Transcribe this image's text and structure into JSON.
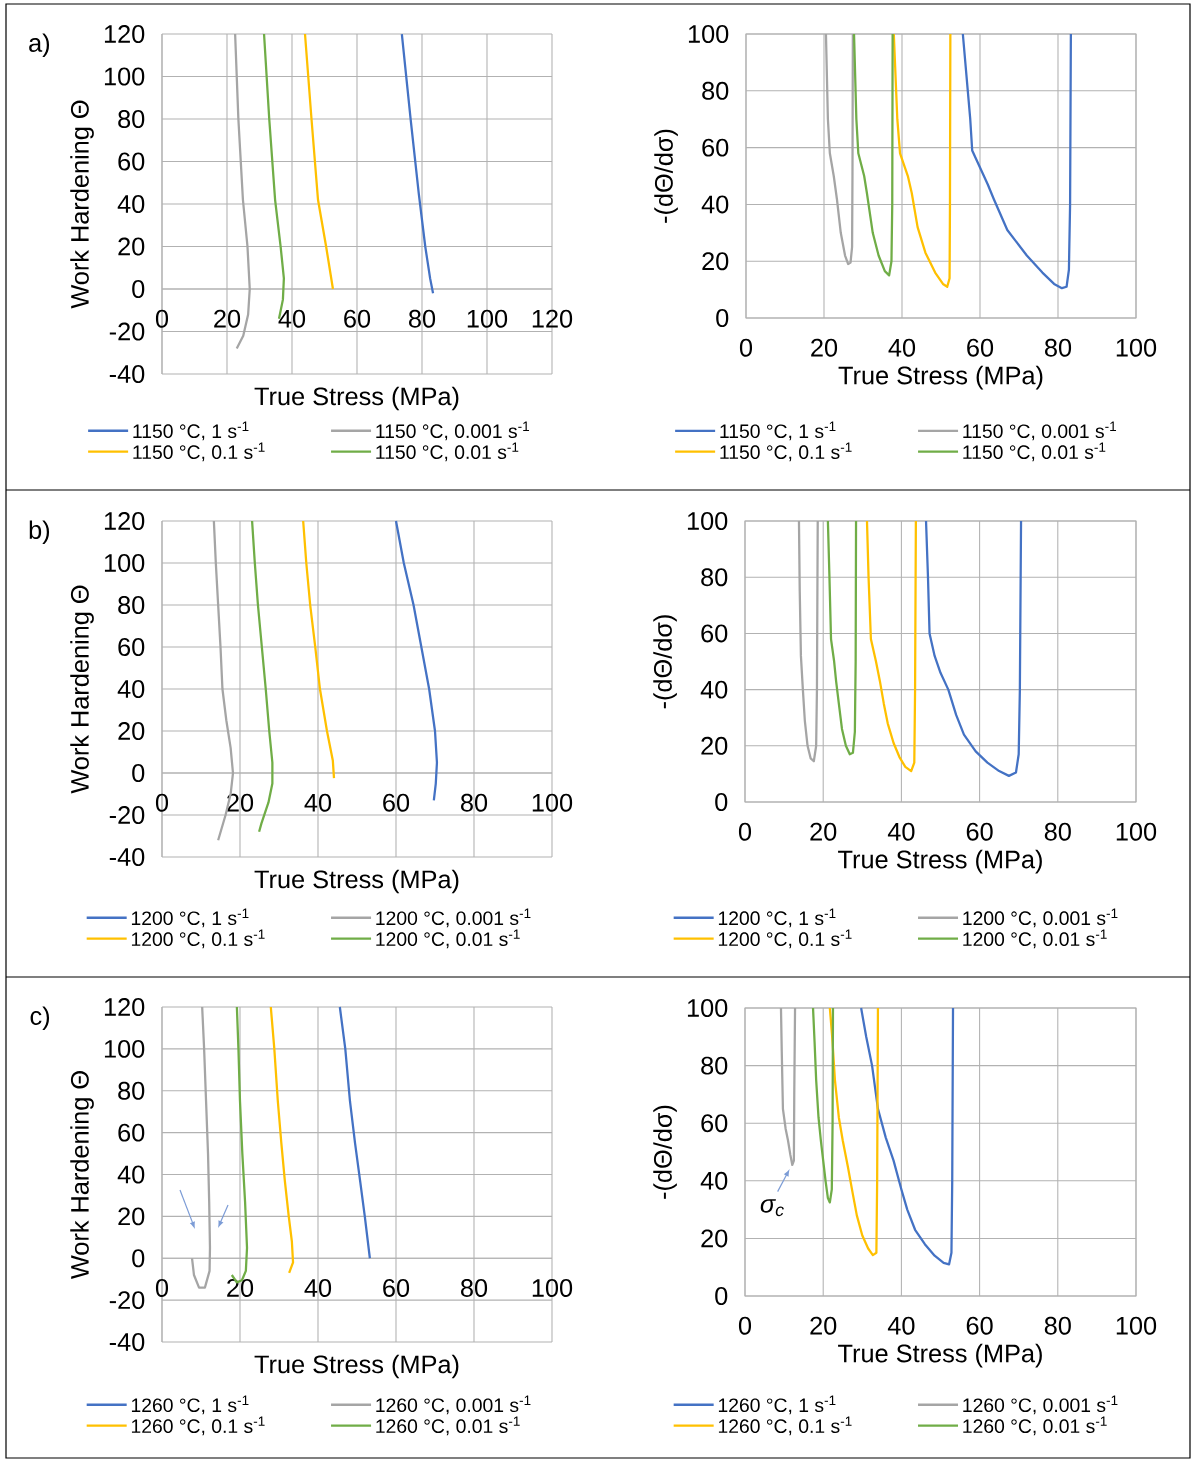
{
  "chart_data": [
    {
      "type": "line",
      "xlabel": "True Stress (MPa)",
      "ylabel": "Work Hardening Θ",
      "xlim": [
        0,
        120
      ],
      "ylim": [
        -40,
        120
      ],
      "xticks": [
        0,
        20,
        40,
        60,
        80,
        100,
        120
      ],
      "yticks": [
        -40,
        -20,
        0,
        20,
        40,
        60,
        80,
        100,
        120
      ],
      "grid": true,
      "legend": "bottom",
      "annotations": [
        "a)"
      ],
      "series": [
        {
          "name": "1150 °C, 1 s$^{-1}$",
          "color": "#4472c4",
          "x": [
            73.8,
            76.5,
            79,
            81,
            82.5,
            83.4
          ],
          "values": [
            120,
            80,
            45,
            20,
            5,
            -2
          ]
        },
        {
          "name": "1150 °C, 0.001 s$^{-1}$",
          "color": "#a5a5a5",
          "x": [
            22.5,
            23.5,
            24.9,
            26.3,
            27,
            26.5,
            25,
            23
          ],
          "values": [
            120,
            80,
            42,
            20,
            0,
            -12,
            -22,
            -28
          ]
        },
        {
          "name": "1150 °C, 0.1 s$^{-1}$",
          "color": "#ffc000",
          "x": [
            44,
            46,
            48,
            50.5,
            52.6
          ],
          "values": [
            120,
            80,
            42,
            20,
            0
          ]
        },
        {
          "name": "1150 °C, 0.01 s$^{-1}$",
          "color": "#70ad47",
          "x": [
            31.4,
            33,
            34.8,
            36.5,
            37.5,
            37.2,
            36
          ],
          "values": [
            120,
            80,
            42,
            20,
            5,
            -5,
            -14
          ]
        }
      ]
    },
    {
      "type": "line",
      "xlabel": "True Stress (MPa)",
      "ylabel": "-(dΘ/dσ)",
      "xlim": [
        0,
        100
      ],
      "ylim": [
        0,
        100
      ],
      "xticks": [
        0,
        20,
        40,
        60,
        80,
        100
      ],
      "yticks": [
        0,
        20,
        40,
        60,
        80,
        100
      ],
      "grid": true,
      "legend": "bottom",
      "series": [
        {
          "name": "1150 °C, 1 s$^{-1}$",
          "color": "#4472c4",
          "x": [
            55.6,
            57.5,
            58,
            62,
            63.5,
            67,
            72,
            76,
            79,
            81,
            82.2,
            82.8,
            83.1,
            83.3
          ],
          "values": [
            100,
            70,
            59,
            47,
            42,
            31,
            22,
            16,
            12,
            10.5,
            11,
            17,
            40,
            100
          ]
        },
        {
          "name": "1150 °C, 0.001 s$^{-1}$",
          "color": "#a5a5a5",
          "x": [
            20.5,
            21,
            21.5,
            22.5,
            23.3,
            24.3,
            25.4,
            26.2,
            26.8,
            27.2,
            27.3,
            27.4
          ],
          "values": [
            100,
            70,
            58,
            50,
            42,
            30,
            22,
            19,
            19.5,
            25,
            50,
            100
          ]
        },
        {
          "name": "1150 °C, 0.1 s$^{-1}$",
          "color": "#ffc000",
          "x": [
            37.9,
            38.8,
            39.5,
            41.5,
            42.5,
            44,
            46,
            48.5,
            50.5,
            51.6,
            52.2,
            52.3,
            52.4
          ],
          "values": [
            100,
            70,
            58,
            50,
            44,
            32,
            23,
            16,
            12,
            11,
            14,
            40,
            100
          ]
        },
        {
          "name": "1150 °C, 0.01 s$^{-1}$",
          "color": "#70ad47",
          "x": [
            27.7,
            28.3,
            28.8,
            30.3,
            31,
            32.5,
            34,
            35.6,
            36.7,
            37.3,
            37.5,
            37.6
          ],
          "values": [
            100,
            70,
            58,
            50,
            44,
            30,
            22,
            16.5,
            15,
            20,
            40,
            100
          ]
        }
      ]
    },
    {
      "type": "line",
      "xlabel": "True Stress (MPa)",
      "ylabel": "Work Hardening Θ",
      "xlim": [
        0,
        100
      ],
      "ylim": [
        -40,
        120
      ],
      "xticks": [
        0,
        20,
        40,
        60,
        80,
        100
      ],
      "yticks": [
        -40,
        -20,
        0,
        20,
        40,
        60,
        80,
        100,
        120
      ],
      "grid": true,
      "legend": "bottom",
      "annotations": [
        "b)"
      ],
      "series": [
        {
          "name": "1200 °C, 1 s$^{-1}$",
          "color": "#4472c4",
          "x": [
            60,
            62,
            64.5,
            66.5,
            68.5,
            70,
            70.5,
            70.2,
            69.7
          ],
          "values": [
            120,
            100,
            80,
            60,
            40,
            20,
            5,
            -5,
            -13
          ]
        },
        {
          "name": "1200 °C, 0.001 s$^{-1}$",
          "color": "#a5a5a5",
          "x": [
            13.3,
            13.8,
            14.4,
            15,
            15.5,
            16.5,
            17.6,
            18.2,
            17.6,
            16.3,
            14.4
          ],
          "values": [
            120,
            100,
            80,
            60,
            40,
            25,
            12,
            0,
            -10,
            -20,
            -32
          ]
        },
        {
          "name": "1200 °C, 0.1 s$^{-1}$",
          "color": "#ffc000",
          "x": [
            36.2,
            37,
            38,
            39.3,
            40.5,
            42.3,
            43.8,
            44.1
          ],
          "values": [
            120,
            100,
            80,
            60,
            40,
            20,
            6,
            -2.4
          ]
        },
        {
          "name": "1200 °C, 0.01 s$^{-1}$",
          "color": "#70ad47",
          "x": [
            23.1,
            23.8,
            24.6,
            25.6,
            26.6,
            27.5,
            28.3,
            28.3,
            27.3,
            25.5,
            24.9
          ],
          "values": [
            120,
            100,
            80,
            60,
            40,
            20,
            5,
            -5,
            -14,
            -24,
            -28
          ]
        }
      ]
    },
    {
      "type": "line",
      "xlabel": "True Stress (MPa)",
      "ylabel": "-(dΘ/dσ)",
      "xlim": [
        0,
        100
      ],
      "ylim": [
        0,
        100
      ],
      "xticks": [
        0,
        20,
        40,
        60,
        80,
        100
      ],
      "yticks": [
        0,
        20,
        40,
        60,
        80,
        100
      ],
      "grid": true,
      "legend": "bottom",
      "series": [
        {
          "name": "1200 °C, 1 s$^{-1}$",
          "color": "#4472c4",
          "x": [
            46.3,
            46.8,
            47.2,
            48.5,
            50,
            52,
            54,
            56,
            59,
            62,
            65,
            67.5,
            69.3,
            70,
            70.3,
            70.6
          ],
          "values": [
            100,
            80,
            60,
            52,
            46,
            40,
            31,
            24,
            18,
            14,
            11,
            9.3,
            10.5,
            17,
            40,
            100
          ]
        },
        {
          "name": "1200 °C, 0.001 s$^{-1}$",
          "color": "#a5a5a5",
          "x": [
            13.8,
            14,
            14.3,
            14.8,
            15.3,
            16,
            16.8,
            17.6,
            18.2,
            18.4,
            18.6
          ],
          "values": [
            100,
            75,
            52,
            40,
            29,
            20,
            15.5,
            14.5,
            20,
            40,
            100
          ]
        },
        {
          "name": "1200 °C, 0.1 s$^{-1}$",
          "color": "#ffc000",
          "x": [
            31.2,
            31.6,
            32.2,
            33.5,
            34.5,
            35.5,
            36.5,
            38,
            39.5,
            41,
            42.5,
            43.3,
            43.5,
            43.7
          ],
          "values": [
            100,
            80,
            58,
            50,
            43,
            35,
            28,
            21,
            16,
            12.5,
            11,
            14,
            40,
            100
          ]
        },
        {
          "name": "1200 °C, 0.01 s$^{-1}$",
          "color": "#70ad47",
          "x": [
            21.2,
            21.6,
            22,
            22.8,
            23.3,
            24,
            24.8,
            25.8,
            26.8,
            27.6,
            28.1,
            28.3,
            28.4
          ],
          "values": [
            100,
            80,
            58,
            50,
            43,
            35,
            26,
            20,
            17,
            17.5,
            25,
            50,
            100
          ]
        }
      ]
    },
    {
      "type": "line",
      "xlabel": "True Stress (MPa)",
      "ylabel": "Work Hardening Θ",
      "xlim": [
        0,
        100
      ],
      "ylim": [
        -40,
        120
      ],
      "xticks": [
        0,
        20,
        40,
        60,
        80,
        100
      ],
      "yticks": [
        -40,
        -20,
        0,
        20,
        40,
        60,
        80,
        100,
        120
      ],
      "grid": true,
      "legend": "bottom",
      "annotations": [
        "c)"
      ],
      "series": [
        {
          "name": "1260 °C, 1 s$^{-1}$",
          "color": "#4472c4",
          "x": [
            45.6,
            47,
            48.2,
            49.5,
            50.8,
            52,
            53.3
          ],
          "values": [
            120,
            100,
            75,
            55,
            37,
            20,
            0
          ]
        },
        {
          "name": "1260 °C, 0.001 s$^{-1}$",
          "color": "#a5a5a5",
          "x": [
            10.3,
            10.8,
            11.3,
            11.8,
            12.1,
            12.3,
            12.2,
            11,
            9.5,
            8.2,
            7.7
          ],
          "values": [
            120,
            100,
            75,
            50,
            27,
            5,
            -6,
            -14,
            -14,
            -8,
            0
          ]
        },
        {
          "name": "1260 °C, 0.1 s$^{-1}$",
          "color": "#ffc000",
          "x": [
            27.9,
            28.8,
            29.7,
            30.6,
            31.5,
            32.5,
            33.3,
            33.6,
            32.6
          ],
          "values": [
            120,
            100,
            75,
            55,
            37,
            20,
            8,
            -2,
            -7
          ]
        },
        {
          "name": "1260 °C, 0.01 s$^{-1}$",
          "color": "#70ad47",
          "x": [
            19.2,
            19.6,
            20,
            20.6,
            21.3,
            21.8,
            21.5,
            20.5,
            19.2,
            17.9
          ],
          "values": [
            120,
            100,
            75,
            50,
            27,
            5,
            -6,
            -10.5,
            -11.5,
            -8
          ]
        }
      ]
    },
    {
      "type": "line",
      "xlabel": "True Stress (MPa)",
      "ylabel": "-(dΘ/dσ)",
      "xlim": [
        0,
        100
      ],
      "ylim": [
        0,
        100
      ],
      "xticks": [
        0,
        20,
        40,
        60,
        80,
        100
      ],
      "yticks": [
        0,
        20,
        40,
        60,
        80,
        100
      ],
      "grid": true,
      "legend": "bottom",
      "annotations": [
        {
          "text": "σ$_{c}$",
          "x": 12.1,
          "y": 45.5
        }
      ],
      "series": [
        {
          "name": "1260 °C, 1 s$^{-1}$",
          "color": "#4472c4",
          "x": [
            29.7,
            31,
            32.5,
            34,
            36,
            38,
            40,
            41.5,
            43.5,
            46,
            48.5,
            50.8,
            52.2,
            52.8,
            53,
            53.2
          ],
          "values": [
            100,
            90,
            80,
            65,
            55,
            47,
            37,
            30,
            23,
            18,
            14,
            11.5,
            11,
            15,
            40,
            100
          ]
        },
        {
          "name": "1260 °C, 0.001 s$^{-1}$",
          "color": "#a5a5a5",
          "x": [
            9.2,
            9.4,
            9.7,
            10.4,
            11,
            11.6,
            12.1,
            12.5,
            12.6,
            12.8
          ],
          "values": [
            100,
            85,
            65,
            58,
            54,
            49,
            45.5,
            47,
            70,
            100
          ]
        },
        {
          "name": "1260 °C, 0.1 s$^{-1}$",
          "color": "#ffc000",
          "x": [
            21.7,
            22.3,
            23,
            24,
            25,
            26.3,
            27.5,
            28.6,
            30,
            31.5,
            32.7,
            33.6,
            33.8,
            34
          ],
          "values": [
            100,
            90,
            75,
            62,
            54,
            45,
            36,
            28,
            21,
            16.5,
            14.2,
            15,
            40,
            100
          ]
        },
        {
          "name": "1260 °C, 0.01 s$^{-1}$",
          "color": "#70ad47",
          "x": [
            17.4,
            17.8,
            18.2,
            18.8,
            19.4,
            20,
            20.6,
            21.2,
            21.7,
            22.2,
            22.4,
            22.5
          ],
          "values": [
            100,
            88,
            75,
            62,
            54,
            47,
            40,
            34,
            32.5,
            37,
            60,
            100
          ]
        }
      ]
    }
  ]
}
